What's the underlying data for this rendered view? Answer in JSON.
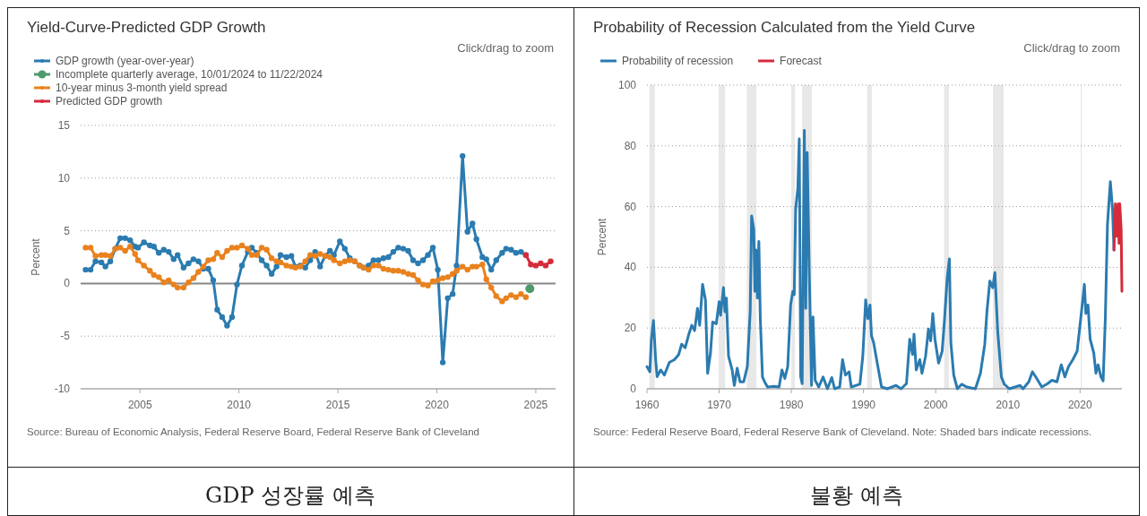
{
  "chart_data": [
    {
      "type": "line",
      "title": "Yield-Curve-Predicted GDP Growth",
      "ylabel": "Percent",
      "xlim": [
        2002,
        2026
      ],
      "xticks": [
        2005,
        2010,
        2015,
        2020,
        2025
      ],
      "ylim": [
        -10,
        15
      ],
      "yticks": [
        -10,
        -5,
        0,
        5,
        10,
        15
      ],
      "grid": "y",
      "legend": "top left",
      "marker": "circle",
      "ref_lines": [
        {
          "axis": "y",
          "value": 0,
          "color": "#888888"
        }
      ],
      "annotations": [
        "Click/drag to zoom",
        "Source: Bureau of Economic Analysis, Federal Reserve Board, Federal Reserve Bank of Cleveland",
        "GDP 성장률 예측"
      ],
      "series": [
        {
          "name": "GDP growth (year-over-year)",
          "color": "#2b7bb0",
          "x": [
            2002.25,
            2002.5,
            2002.75,
            2003.05,
            2003.25,
            2003.5,
            2003.75,
            2004,
            2004.25,
            2004.5,
            2004.75,
            2004.9,
            2005.2,
            2005.5,
            2005.7,
            2005.95,
            2006.2,
            2006.45,
            2006.7,
            2006.9,
            2007.2,
            2007.45,
            2007.7,
            2007.95,
            2008.2,
            2008.45,
            2008.7,
            2008.9,
            2009.15,
            2009.4,
            2009.65,
            2009.9,
            2010.15,
            2010.45,
            2010.65,
            2010.9,
            2011.15,
            2011.4,
            2011.65,
            2011.9,
            2012.1,
            2012.4,
            2012.65,
            2012.85,
            2013.1,
            2013.35,
            2013.6,
            2013.85,
            2014.1,
            2014.35,
            2014.6,
            2014.8,
            2015.1,
            2015.35,
            2015.6,
            2015.85,
            2016.1,
            2016.3,
            2016.55,
            2016.8,
            2017.05,
            2017.3,
            2017.55,
            2017.8,
            2018.05,
            2018.3,
            2018.55,
            2018.8,
            2019.05,
            2019.3,
            2019.55,
            2019.8,
            2020.05,
            2020.3,
            2020.55,
            2020.8,
            2021.0,
            2021.3,
            2021.55,
            2021.8,
            2022.0,
            2022.3,
            2022.5,
            2022.75,
            2023.0,
            2023.3,
            2023.5,
            2023.75,
            2024.0,
            2024.25,
            2024.5
          ],
          "values": [
            1.3,
            1.3,
            2.1,
            2.0,
            1.6,
            2.1,
            3.3,
            4.3,
            4.3,
            4.1,
            3.5,
            3.4,
            3.9,
            3.6,
            3.5,
            2.9,
            3.2,
            3.0,
            2.3,
            2.7,
            1.5,
            1.9,
            2.3,
            2.1,
            1.4,
            1.4,
            0.3,
            -2.5,
            -3.2,
            -4.0,
            -3.2,
            -0.1,
            1.7,
            3.0,
            3.4,
            2.9,
            2.2,
            1.7,
            0.9,
            1.6,
            2.7,
            2.5,
            2.6,
            1.6,
            1.7,
            1.5,
            2.2,
            3.0,
            1.6,
            2.6,
            3.1,
            2.7,
            4.0,
            3.3,
            2.4,
            2.1,
            1.7,
            1.5,
            1.7,
            2.2,
            2.2,
            2.4,
            2.5,
            3.0,
            3.4,
            3.3,
            3.1,
            2.2,
            1.9,
            2.2,
            2.7,
            3.4,
            1.3,
            -7.5,
            -1.4,
            -1.0,
            1.7,
            12.1,
            4.9,
            5.7,
            4.2,
            2.5,
            2.3,
            1.3,
            2.2,
            2.9,
            3.3,
            3.2,
            2.9,
            3.0,
            2.7
          ]
        },
        {
          "name": "Incomplete quarterly average, 10/01/2024 to 11/22/2024",
          "type": "scatter",
          "color": "#4e9a6b",
          "x": [
            2024.7
          ],
          "values": [
            -0.5
          ]
        },
        {
          "name": "10-year minus 3-month yield spread",
          "color": "#e9821e",
          "x": [
            2002.25,
            2002.5,
            2002.75,
            2003.05,
            2003.25,
            2003.5,
            2003.75,
            2004,
            2004.25,
            2004.5,
            2004.75,
            2004.9,
            2005.2,
            2005.5,
            2005.7,
            2005.95,
            2006.2,
            2006.45,
            2006.7,
            2006.9,
            2007.2,
            2007.45,
            2007.7,
            2007.95,
            2008.2,
            2008.45,
            2008.7,
            2008.9,
            2009.15,
            2009.4,
            2009.65,
            2009.9,
            2010.15,
            2010.45,
            2010.65,
            2010.9,
            2011.15,
            2011.4,
            2011.65,
            2011.9,
            2012.1,
            2012.4,
            2012.65,
            2012.85,
            2013.1,
            2013.35,
            2013.6,
            2013.85,
            2014.1,
            2014.35,
            2014.6,
            2014.8,
            2015.1,
            2015.35,
            2015.6,
            2015.85,
            2016.1,
            2016.3,
            2016.55,
            2016.8,
            2017.05,
            2017.3,
            2017.55,
            2017.8,
            2018.05,
            2018.3,
            2018.55,
            2018.8,
            2019.05,
            2019.3,
            2019.55,
            2019.8,
            2020.05,
            2020.3,
            2020.55,
            2020.8,
            2021.0,
            2021.3,
            2021.55,
            2021.8,
            2022.0,
            2022.3,
            2022.5,
            2022.75,
            2023.0,
            2023.3,
            2023.5,
            2023.75,
            2024.0,
            2024.25,
            2024.5
          ],
          "values": [
            3.4,
            3.4,
            2.6,
            2.7,
            2.7,
            2.6,
            3.3,
            3.4,
            3.1,
            3.5,
            2.8,
            2.2,
            1.7,
            1.2,
            0.8,
            0.6,
            0.1,
            0.3,
            -0.1,
            -0.4,
            -0.4,
            0.1,
            0.5,
            1.1,
            1.6,
            2.2,
            2.3,
            2.9,
            2.5,
            3.1,
            3.4,
            3.4,
            3.6,
            3.3,
            2.7,
            2.7,
            3.4,
            3.2,
            2.4,
            2.1,
            2.0,
            1.7,
            1.6,
            1.5,
            1.6,
            2.1,
            2.7,
            2.6,
            2.8,
            2.6,
            2.5,
            2.2,
            1.9,
            2.1,
            2.2,
            2.1,
            1.7,
            1.5,
            1.3,
            1.7,
            1.7,
            1.4,
            1.3,
            1.2,
            1.2,
            1.1,
            0.9,
            0.8,
            0.3,
            -0.1,
            -0.2,
            0.2,
            0.3,
            0.5,
            0.6,
            0.9,
            1.2,
            1.6,
            1.3,
            1.6,
            1.6,
            1.8,
            0.4,
            -0.4,
            -1.2,
            -1.7,
            -1.4,
            -1.1,
            -1.3,
            -1.0,
            -1.3
          ]
        },
        {
          "name": "Predicted GDP growth",
          "color": "#d52b3a",
          "x": [
            2024.5,
            2024.75,
            2025,
            2025.25,
            2025.5,
            2025.75
          ],
          "values": [
            2.7,
            1.8,
            1.7,
            1.9,
            1.7,
            2.1
          ]
        }
      ]
    },
    {
      "type": "line",
      "title": "Probability of Recession Calculated from the Yield Curve",
      "ylabel": "Percent",
      "xlim": [
        1960,
        2025.8
      ],
      "xticks": [
        1960,
        1970,
        1980,
        1990,
        2000,
        2010,
        2020
      ],
      "ylim": [
        0,
        100
      ],
      "yticks": [
        0,
        20,
        40,
        60,
        80,
        100
      ],
      "grid": "y",
      "legend": "top left",
      "bands": [
        {
          "axis": "x",
          "from": 1960.33,
          "to": 1961.08,
          "color": "#e8e8e8"
        },
        {
          "axis": "x",
          "from": 1969.92,
          "to": 1970.83,
          "color": "#e8e8e8"
        },
        {
          "axis": "x",
          "from": 1973.83,
          "to": 1975.17,
          "color": "#e8e8e8"
        },
        {
          "axis": "x",
          "from": 1980.0,
          "to": 1980.5,
          "color": "#e8e8e8"
        },
        {
          "axis": "x",
          "from": 1981.5,
          "to": 1982.83,
          "color": "#e8e8e8"
        },
        {
          "axis": "x",
          "from": 1990.5,
          "to": 1991.17,
          "color": "#e8e8e8"
        },
        {
          "axis": "x",
          "from": 2001.17,
          "to": 2001.83,
          "color": "#e8e8e8"
        },
        {
          "axis": "x",
          "from": 2007.92,
          "to": 2009.42,
          "color": "#e8e8e8"
        },
        {
          "axis": "x",
          "from": 2020.08,
          "to": 2020.25,
          "color": "#e8e8e8"
        }
      ],
      "annotations": [
        "Click/drag to zoom",
        "Source: Federal Reserve Board, Federal Reserve Bank of Cleveland. Note: Shaded bars indicate recessions.",
        "불황 예측"
      ],
      "series": [
        {
          "name": "Probability of recession",
          "color": "#2b7bb0",
          "x": [
            1960.0,
            1960.4,
            1960.6,
            1960.9,
            1961.2,
            1961.4,
            1961.9,
            1962.4,
            1963.1,
            1963.8,
            1964.4,
            1964.8,
            1965.3,
            1965.8,
            1966.2,
            1966.6,
            1967.0,
            1967.3,
            1967.7,
            1968.1,
            1968.4,
            1968.8,
            1969.1,
            1969.6,
            1970.0,
            1970.2,
            1970.6,
            1970.8,
            1971.0,
            1971.3,
            1971.8,
            1972.1,
            1972.5,
            1972.9,
            1973.4,
            1973.9,
            1974.3,
            1974.5,
            1974.8,
            1974.95,
            1975.1,
            1975.3,
            1975.5,
            1975.7,
            1976.0,
            1976.3,
            1976.7,
            1977.6,
            1978.3,
            1978.7,
            1979.1,
            1979.5,
            1979.9,
            1980.2,
            1980.4,
            1980.6,
            1980.9,
            1981.1,
            1981.3,
            1981.5,
            1981.8,
            1982.0,
            1982.2,
            1982.5,
            1982.8,
            1983.0,
            1983.3,
            1983.8,
            1984.4,
            1985.0,
            1985.6,
            1986.0,
            1986.7,
            1987.1,
            1987.5,
            1988.0,
            1988.3,
            1989.5,
            1989.9,
            1990.3,
            1990.6,
            1990.9,
            1991.1,
            1991.4,
            1991.9,
            1992.5,
            1993.3,
            1994.5,
            1995.2,
            1995.95,
            1996.4,
            1996.8,
            1997.0,
            1997.3,
            1997.8,
            1998.1,
            1998.6,
            1999.0,
            1999.3,
            1999.6,
            1999.9,
            2000.4,
            2000.9,
            2001.2,
            2001.6,
            2001.9,
            2002.1,
            2002.5,
            2003.0,
            2003.6,
            2004.3,
            2005.5,
            2006.2,
            2006.8,
            2007.1,
            2007.5,
            2007.9,
            2008.2,
            2008.6,
            2009.1,
            2009.5,
            2010.2,
            2011.7,
            2012.1,
            2012.9,
            2013.4,
            2014.0,
            2014.7,
            2015.5,
            2016.1,
            2016.8,
            2017.4,
            2017.9,
            2018.4,
            2019.0,
            2019.6,
            2020.2,
            2020.6,
            2020.8,
            2021.1,
            2021.4,
            2021.9,
            2022.2,
            2022.5,
            2022.9,
            2023.2,
            2023.5,
            2023.8,
            2024.2,
            2024.5,
            2024.7
          ],
          "values": [
            7.3,
            5.6,
            16,
            22.5,
            9.6,
            4,
            6.2,
            4.5,
            8.7,
            9.6,
            11.3,
            14.7,
            13.5,
            18,
            20.9,
            19.2,
            26.5,
            20.9,
            34.4,
            29.3,
            5.1,
            11.8,
            22,
            21.4,
            28.7,
            24.2,
            33.3,
            25.4,
            29.9,
            10.7,
            6.2,
            1.1,
            6.8,
            2.3,
            2.3,
            7.3,
            25.4,
            56.9,
            52.4,
            32.1,
            45.7,
            29.9,
            48.5,
            23.1,
            3.9,
            2.3,
            0.6,
            0.8,
            0.6,
            6.2,
            3.4,
            7.3,
            27.6,
            32.1,
            31,
            59.2,
            66,
            82.3,
            3.9,
            1.7,
            85.1,
            26.5,
            77.8,
            36.6,
            1.1,
            23.7,
            2.8,
            0.6,
            3.9,
            0,
            3.7,
            0,
            0.6,
            9.6,
            4.5,
            5.6,
            0.6,
            1.5,
            10.7,
            29.3,
            23.1,
            27.6,
            17.5,
            15.2,
            8.5,
            0.6,
            0,
            1.1,
            0,
            1.7,
            16.3,
            11.3,
            18,
            6.2,
            9.6,
            5.1,
            10.7,
            19.7,
            15.8,
            24.8,
            16.3,
            8.5,
            12.4,
            22,
            36.6,
            42.8,
            15.2,
            4.5,
            0,
            1.5,
            0.6,
            0,
            5.1,
            14.7,
            25.4,
            35.5,
            33.3,
            38.3,
            18.6,
            3.9,
            1.5,
            0,
            1.1,
            0,
            2.3,
            5.6,
            3.4,
            0.6,
            1.7,
            2.8,
            2.3,
            7.9,
            3.9,
            7.3,
            9.6,
            12.4,
            25.4,
            34.4,
            24.8,
            27.6,
            16.3,
            11.8,
            5.1,
            7.9,
            3.9,
            2.6,
            23.1,
            54.1,
            68.2,
            59.2,
            45.7
          ]
        },
        {
          "name": "Forecast",
          "color": "#d52b3a",
          "x": [
            2024.7,
            2024.9,
            2025.1,
            2025.3,
            2025.4,
            2025.5,
            2025.7,
            2025.8
          ],
          "values": [
            45.7,
            60.9,
            50.2,
            60.9,
            47.9,
            60.9,
            52.4,
            32.1
          ]
        }
      ]
    }
  ]
}
